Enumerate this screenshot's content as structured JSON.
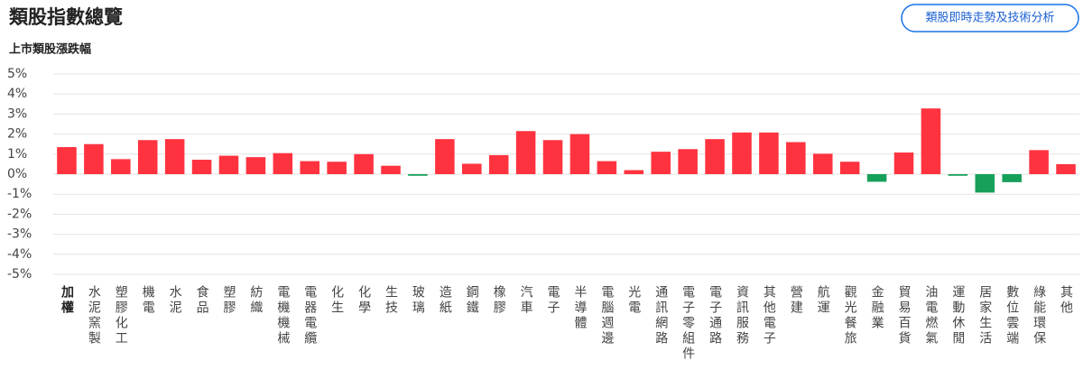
{
  "header": {
    "title": "類股指數總覽",
    "button": "類股即時走勢及技術分析"
  },
  "chart_data": {
    "type": "bar",
    "title": "上市類股漲跌幅",
    "categories": [
      "加權",
      "水泥窯製",
      "塑膠化工",
      "機電",
      "水泥",
      "食品",
      "塑膠",
      "紡織",
      "電機機械",
      "電器電纜",
      "化生",
      "化學",
      "生技",
      "玻璃",
      "造紙",
      "鋼鐵",
      "橡膠",
      "汽車",
      "電子",
      "半導體",
      "電腦週邊",
      "光電",
      "通訊網路",
      "電子零組件",
      "電子通路",
      "資訊服務",
      "其他電子",
      "營建",
      "航運",
      "觀光餐旅",
      "金融業",
      "貿易百貨",
      "油電燃氣",
      "運動休閒",
      "居家生活",
      "數位雲端",
      "綠能環保",
      "其他"
    ],
    "values": [
      1.35,
      1.5,
      0.75,
      1.7,
      1.75,
      0.72,
      0.92,
      0.85,
      1.05,
      0.65,
      0.62,
      1.0,
      0.42,
      -0.08,
      1.75,
      0.52,
      0.95,
      2.15,
      1.7,
      2.0,
      0.65,
      0.2,
      1.12,
      1.25,
      1.75,
      2.08,
      2.08,
      1.6,
      1.02,
      0.62,
      -0.38,
      1.08,
      3.28,
      -0.08,
      -0.92,
      -0.4,
      1.2,
      0.5
    ],
    "up_color": "#ff333f",
    "down_color": "#17a05a",
    "ylim": [
      -5,
      5
    ],
    "yticks": [
      {
        "value": -5,
        "label": "-5%"
      },
      {
        "value": -4,
        "label": "-4%"
      },
      {
        "value": -3,
        "label": "-3%"
      },
      {
        "value": -2,
        "label": "-2%"
      },
      {
        "value": -1,
        "label": "-1%"
      },
      {
        "value": 0,
        "label": "0%"
      },
      {
        "value": 1,
        "label": "1%"
      },
      {
        "value": 2,
        "label": "2%"
      },
      {
        "value": 3,
        "label": "3%"
      },
      {
        "value": 4,
        "label": "4%"
      },
      {
        "value": 5,
        "label": "5%"
      }
    ],
    "grid": true
  }
}
